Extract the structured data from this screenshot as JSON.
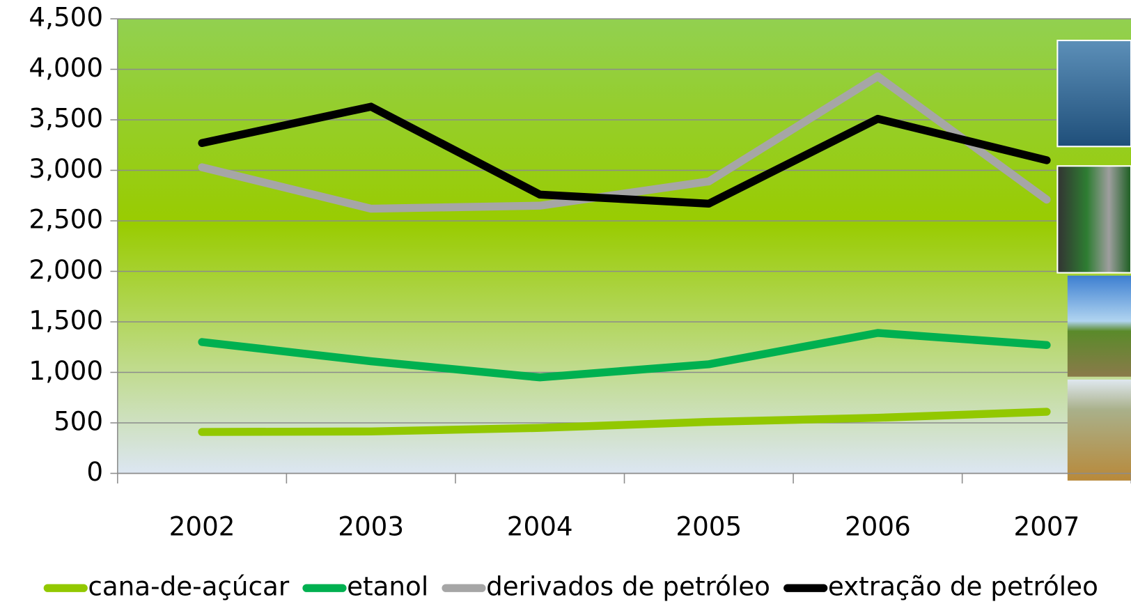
{
  "chart_data": {
    "type": "line",
    "categories": [
      "2002",
      "2003",
      "2004",
      "2005",
      "2006",
      "2007"
    ],
    "series": [
      {
        "name": "cana-de-açúcar",
        "color": "#92c800",
        "values": [
          410,
          415,
          450,
          510,
          550,
          610
        ]
      },
      {
        "name": "etanol",
        "color": "#00b050",
        "values": [
          1300,
          1110,
          950,
          1080,
          1390,
          1270
        ]
      },
      {
        "name": "derivados de petróleo",
        "color": "#a6a6a6",
        "values": [
          3030,
          2620,
          2650,
          2890,
          3930,
          2710
        ]
      },
      {
        "name": "extração de petróleo",
        "color": "#000000",
        "values": [
          3270,
          3630,
          2760,
          2670,
          3510,
          3100
        ]
      }
    ],
    "ylim": [
      0,
      4500
    ],
    "yticks": [
      0,
      500,
      {
        "value": 1000,
        "label": "1,000"
      },
      {
        "value": 1500,
        "label": "1,500"
      },
      {
        "value": 2000,
        "label": "2,000"
      },
      {
        "value": 2500,
        "label": "2,500"
      },
      {
        "value": 3000,
        "label": "3,000"
      },
      {
        "value": 3500,
        "label": "3,500"
      },
      {
        "value": 4000,
        "label": "4,000"
      },
      {
        "value": 4500,
        "label": "4,500"
      }
    ],
    "grid": true,
    "legend": "bottom"
  }
}
